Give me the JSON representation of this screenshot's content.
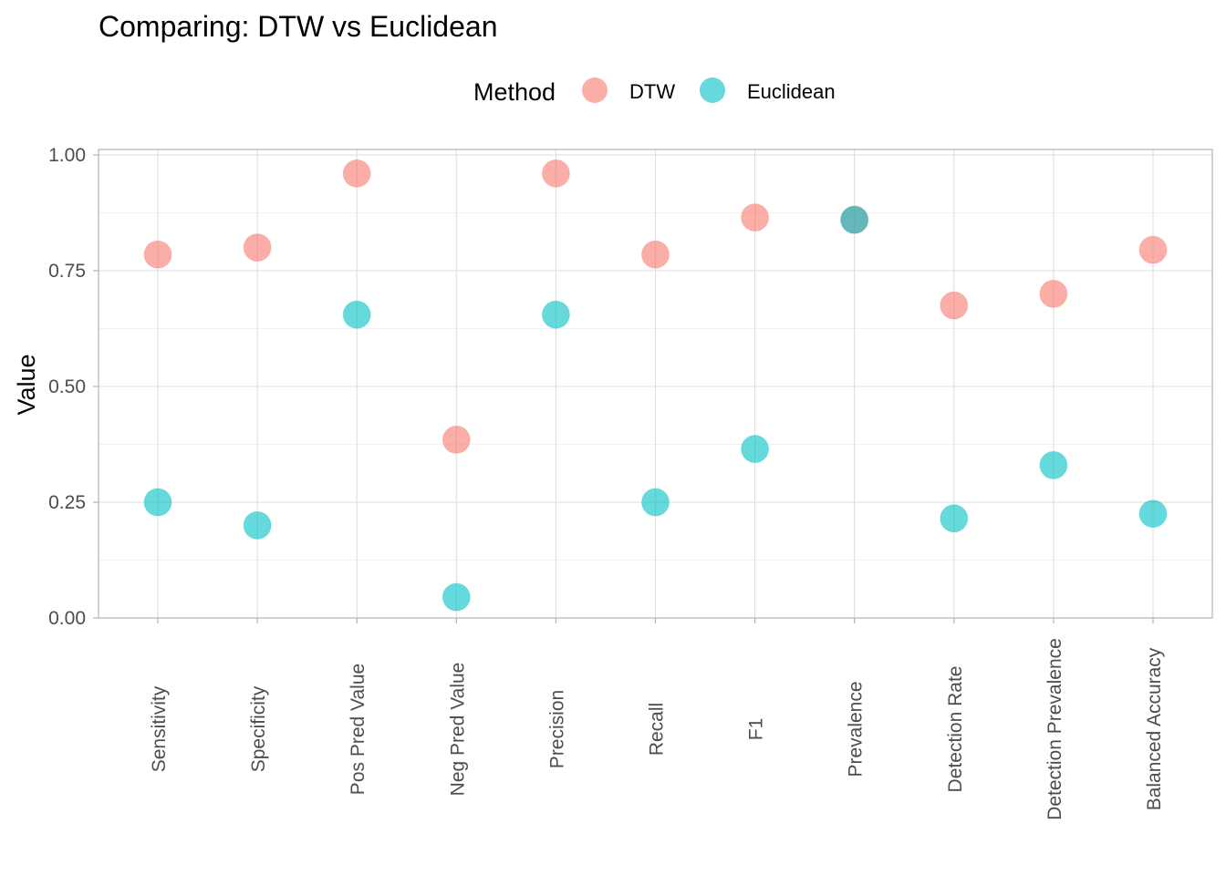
{
  "chart_data": {
    "type": "scatter",
    "title": "Comparing: DTW vs Euclidean",
    "xlabel": "",
    "ylabel": "Value",
    "categories": [
      "Sensitivity",
      "Specificity",
      "Pos Pred Value",
      "Neg Pred Value",
      "Precision",
      "Recall",
      "F1",
      "Prevalence",
      "Detection Rate",
      "Detection Prevalence",
      "Balanced Accuracy"
    ],
    "ylim": [
      0,
      1
    ],
    "yticks": [
      "0.00",
      "0.25",
      "0.50",
      "0.75",
      "1.00"
    ],
    "grid": true,
    "legend": {
      "title": "Method",
      "position": "top"
    },
    "series": [
      {
        "name": "DTW",
        "color": "#F8766D",
        "values": [
          0.785,
          0.8,
          0.96,
          0.385,
          0.96,
          0.785,
          0.865,
          0.86,
          0.675,
          0.7,
          0.795
        ]
      },
      {
        "name": "Euclidean",
        "color": "#00BFC4",
        "values": [
          0.25,
          0.2,
          0.655,
          0.045,
          0.655,
          0.25,
          0.365,
          0.86,
          0.215,
          0.33,
          0.225
        ]
      }
    ]
  }
}
